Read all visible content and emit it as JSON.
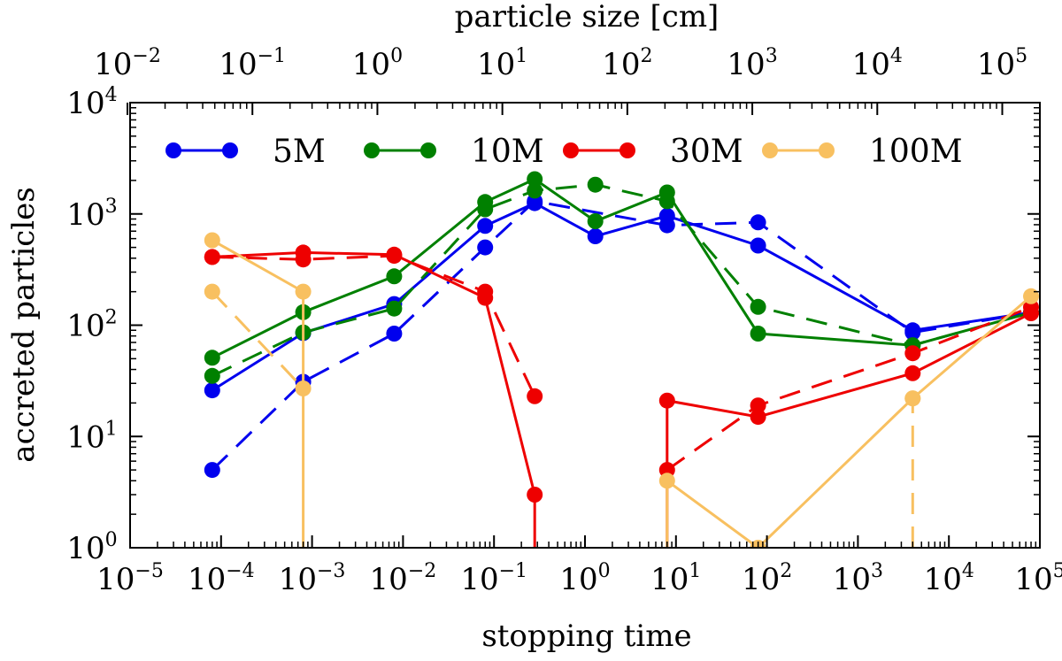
{
  "chart_data": {
    "type": "line",
    "title": "",
    "xlabel": "stopping time",
    "ylabel": "accreted particles",
    "top_xlabel": "particle size [cm]",
    "xscale": "log",
    "yscale": "log",
    "xlim": [
      1e-05,
      100000.0
    ],
    "ylim": [
      1,
      10000
    ],
    "top_xlim": [
      0.0105,
      200000
    ],
    "x_ticks": [
      {
        "value": 1e-05,
        "base": "10",
        "exp": "−5"
      },
      {
        "value": 0.0001,
        "base": "10",
        "exp": "−4"
      },
      {
        "value": 0.001,
        "base": "10",
        "exp": "−3"
      },
      {
        "value": 0.01,
        "base": "10",
        "exp": "−2"
      },
      {
        "value": 0.1,
        "base": "10",
        "exp": "−1"
      },
      {
        "value": 1.0,
        "base": "10",
        "exp": "0"
      },
      {
        "value": 10.0,
        "base": "10",
        "exp": "1"
      },
      {
        "value": 100.0,
        "base": "10",
        "exp": "2"
      },
      {
        "value": 1000.0,
        "base": "10",
        "exp": "3"
      },
      {
        "value": 10000.0,
        "base": "10",
        "exp": "4"
      },
      {
        "value": 100000.0,
        "base": "10",
        "exp": "5"
      }
    ],
    "top_x_ticks": [
      {
        "value": 0.01,
        "base": "10",
        "exp": "−2"
      },
      {
        "value": 0.1,
        "base": "10",
        "exp": "−1"
      },
      {
        "value": 1.0,
        "base": "10",
        "exp": "0"
      },
      {
        "value": 10.0,
        "base": "10",
        "exp": "1"
      },
      {
        "value": 100.0,
        "base": "10",
        "exp": "2"
      },
      {
        "value": 1000.0,
        "base": "10",
        "exp": "3"
      },
      {
        "value": 10000.0,
        "base": "10",
        "exp": "4"
      },
      {
        "value": 100000.0,
        "base": "10",
        "exp": "5"
      }
    ],
    "y_ticks": [
      {
        "value": 1,
        "base": "10",
        "exp": "0"
      },
      {
        "value": 10,
        "base": "10",
        "exp": "1"
      },
      {
        "value": 100,
        "base": "10",
        "exp": "2"
      },
      {
        "value": 1000,
        "base": "10",
        "exp": "3"
      },
      {
        "value": 10000,
        "base": "10",
        "exp": "4"
      }
    ],
    "legend": {
      "placement": "top",
      "entries": [
        "5M",
        "10M",
        "30M",
        "100M"
      ]
    },
    "series": [
      {
        "name": "5M",
        "color": "#0000ee",
        "style": "solid",
        "points": [
          [
            8e-05,
            26
          ],
          [
            0.0008,
            85
          ],
          [
            0.008,
            155
          ],
          [
            0.08,
            780
          ],
          [
            0.28,
            1250
          ],
          [
            1.3,
            630
          ],
          [
            8,
            960
          ],
          [
            80,
            520
          ],
          [
            4000,
            90
          ],
          [
            80000,
            130
          ]
        ]
      },
      {
        "name": "5M dashed",
        "color": "#0000ee",
        "style": "dashed",
        "points": [
          [
            8e-05,
            5
          ],
          [
            0.0008,
            31
          ],
          [
            0.008,
            84
          ],
          [
            0.08,
            500
          ],
          [
            0.28,
            1300
          ],
          [
            8,
            790
          ],
          [
            80,
            840
          ],
          [
            4000,
            86
          ],
          [
            80000,
            130
          ]
        ]
      },
      {
        "name": "10M",
        "color": "#008000",
        "style": "solid",
        "points": [
          [
            8e-05,
            51
          ],
          [
            0.0008,
            131
          ],
          [
            0.008,
            275
          ],
          [
            0.08,
            1280
          ],
          [
            0.28,
            2050
          ],
          [
            1.3,
            860
          ],
          [
            8,
            1560
          ],
          [
            80,
            84
          ],
          [
            4000,
            66
          ],
          [
            80000,
            130
          ]
        ]
      },
      {
        "name": "10M dashed",
        "color": "#008000",
        "style": "dashed",
        "points": [
          [
            8e-05,
            35
          ],
          [
            0.0008,
            86
          ],
          [
            0.008,
            141
          ],
          [
            0.08,
            1100
          ],
          [
            0.28,
            1620
          ],
          [
            1.3,
            1830
          ],
          [
            8,
            1300
          ],
          [
            80,
            146
          ],
          [
            4000,
            66
          ],
          [
            80000,
            130
          ]
        ]
      },
      {
        "name": "30M",
        "color": "#ee0000",
        "style": "solid",
        "points": [
          [
            8e-05,
            410
          ],
          [
            0.0008,
            450
          ],
          [
            0.008,
            430
          ],
          [
            0.08,
            176
          ],
          [
            0.28,
            3
          ],
          [
            0.28,
            1
          ]
        ],
        "points2": [
          [
            8,
            1
          ],
          [
            8,
            21
          ],
          [
            80,
            15
          ],
          [
            4000,
            37
          ],
          [
            80000,
            128
          ]
        ]
      },
      {
        "name": "30M dashed",
        "color": "#ee0000",
        "style": "dashed",
        "points": [
          [
            8e-05,
            410
          ],
          [
            0.0008,
            390
          ],
          [
            0.008,
            420
          ],
          [
            0.08,
            200
          ],
          [
            0.28,
            23
          ]
        ],
        "points2": [
          [
            8,
            5
          ],
          [
            80,
            19
          ],
          [
            4000,
            56
          ],
          [
            80000,
            145
          ]
        ]
      },
      {
        "name": "100M",
        "color": "#f8c060",
        "style": "solid",
        "points": [
          [
            8e-05,
            580
          ],
          [
            0.0008,
            200
          ],
          [
            0.0008,
            1
          ]
        ],
        "points2": [
          [
            8,
            1
          ],
          [
            8,
            4
          ],
          [
            80,
            1
          ],
          [
            4000,
            22
          ],
          [
            80000,
            182
          ]
        ]
      },
      {
        "name": "100M dashed",
        "color": "#f8c060",
        "style": "dashed",
        "points": [
          [
            8e-05,
            200
          ],
          [
            0.0008,
            27
          ]
        ],
        "points2": [
          [
            4000,
            1
          ],
          [
            4000,
            22
          ]
        ]
      }
    ]
  }
}
